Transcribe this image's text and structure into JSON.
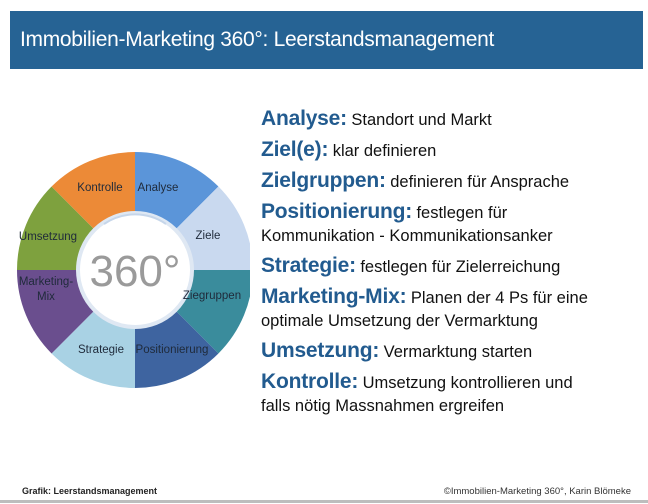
{
  "header": {
    "title": "Immobilien-Marketing 360°: Leerstandsmanagement",
    "background": "#266394"
  },
  "wheel": {
    "center_label": "360°",
    "segments": [
      {
        "label": "Analyse",
        "color": "#5b95d9"
      },
      {
        "label": "Ziele",
        "color": "#c9d9ef"
      },
      {
        "label": "Ziegruppen",
        "color": "#3a8c9c"
      },
      {
        "label": "Positionierung",
        "color": "#3e64a0"
      },
      {
        "label": "Strategie",
        "color": "#a9d2e4"
      },
      {
        "label": "Marketing-",
        "label2": "Mix",
        "color": "#6a4e8e"
      },
      {
        "label": "Umsetzung",
        "color": "#7ea13e"
      },
      {
        "label": "Kontrolle",
        "color": "#ec8a37"
      }
    ]
  },
  "steps": [
    {
      "term": "Analyse:",
      "desc": "Standort und Markt"
    },
    {
      "term": "Ziel(e):",
      "desc": "klar definieren"
    },
    {
      "term": "Zielgruppen:",
      "desc": "definieren für Ansprache"
    },
    {
      "term": "Positionierung:",
      "desc": "festlegen für",
      "desc2": "Kommunikation - Kommunikationsanker"
    },
    {
      "term": "Strategie:",
      "desc": "festlegen für Zielerreichung"
    },
    {
      "term": "Marketing-Mix:",
      "desc": "Planen der 4 Ps für eine",
      "desc2": "optimale Umsetzung der Vermarktung"
    },
    {
      "term": "Umsetzung:",
      "desc": "Vermarktung starten"
    },
    {
      "term": "Kontrolle:",
      "desc": "Umsetzung kontrollieren und",
      "desc2": "falls nötig Massnahmen ergreifen"
    }
  ],
  "footer": {
    "left": "Grafik: Leerstandsmanagement",
    "right": "©Immobilien-Marketing 360°, Karin Blömeke"
  }
}
